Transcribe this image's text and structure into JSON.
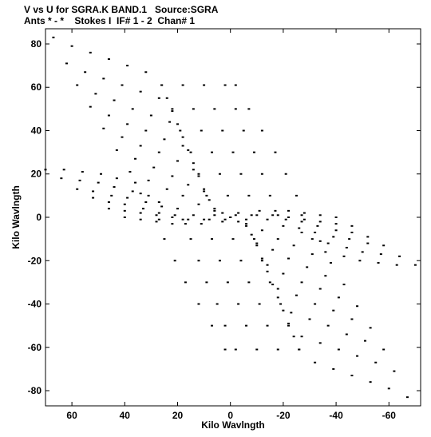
{
  "header": {
    "line1": "V vs U for SGRA.K BAND.1   Source:SGRA",
    "line2": "Ants * - *    Stokes I  IF# 1 - 2  Chan# 1"
  },
  "chart_data": {
    "type": "scatter",
    "title": "V vs U for SGRA.K BAND.1   Source:SGRA",
    "xlabel": "Kilo Wavlngth",
    "ylabel": "Kilo Wavlngth",
    "xlim": [
      70,
      -72
    ],
    "ylim": [
      -87,
      87
    ],
    "xticks": [
      60,
      40,
      20,
      0,
      -20,
      -40,
      -60
    ],
    "xtick_labels": [
      "60",
      "40",
      "20",
      "0",
      "-20",
      "-40",
      "-60"
    ],
    "yticks": [
      80,
      60,
      40,
      20,
      0,
      -20,
      -40,
      -60,
      -80
    ],
    "ytick_labels": [
      "80",
      "60",
      "40",
      "20",
      "0",
      "-20",
      "-40",
      "-60",
      "-80"
    ],
    "grid": false,
    "legend": "none",
    "marker_color": "#000000",
    "symmetry": "points mirrored through origin (u,v) and (-u,-v)",
    "series": [
      {
        "values": [
          [
            67,
            83
          ],
          [
            60,
            79
          ],
          [
            53,
            76
          ],
          [
            46,
            73
          ],
          [
            39,
            70
          ],
          [
            32,
            67
          ],
          [
            62,
            71
          ],
          [
            55,
            67
          ],
          [
            48,
            64
          ],
          [
            41,
            61
          ],
          [
            34,
            58
          ],
          [
            27,
            55
          ],
          [
            58,
            61
          ],
          [
            51,
            57
          ],
          [
            44,
            54
          ],
          [
            37,
            50
          ],
          [
            30,
            47
          ],
          [
            23,
            44
          ],
          [
            53,
            51
          ],
          [
            46,
            47
          ],
          [
            39,
            43
          ],
          [
            32,
            40
          ],
          [
            25,
            36
          ],
          [
            18,
            33
          ],
          [
            48,
            41
          ],
          [
            41,
            37
          ],
          [
            34,
            33
          ],
          [
            27,
            30
          ],
          [
            20,
            26
          ],
          [
            14,
            22
          ],
          [
            43,
            31
          ],
          [
            36,
            27
          ],
          [
            29,
            23
          ],
          [
            22,
            19
          ],
          [
            16,
            15
          ],
          [
            10,
            12
          ],
          [
            38,
            21
          ],
          [
            31,
            17
          ],
          [
            24,
            13
          ],
          [
            18,
            10
          ],
          [
            12,
            6
          ],
          [
            6,
            3
          ],
          [
            34,
            11
          ],
          [
            27,
            7
          ],
          [
            20,
            4
          ],
          [
            14,
            1
          ],
          [
            8,
            -1
          ],
          [
            3,
            -2
          ],
          [
            70,
            22
          ],
          [
            63,
            22
          ],
          [
            56,
            21
          ],
          [
            49,
            20
          ],
          [
            43,
            18
          ],
          [
            36,
            16
          ],
          [
            64,
            18
          ],
          [
            57,
            17
          ],
          [
            50,
            16
          ],
          [
            44,
            14
          ],
          [
            37,
            12
          ],
          [
            31,
            10
          ],
          [
            58,
            13
          ],
          [
            52,
            12
          ],
          [
            45,
            10
          ],
          [
            39,
            9
          ],
          [
            32,
            7
          ],
          [
            26,
            5
          ],
          [
            52,
            9
          ],
          [
            46,
            7
          ],
          [
            40,
            6
          ],
          [
            33,
            4
          ],
          [
            27,
            2
          ],
          [
            21,
            1
          ],
          [
            46,
            4
          ],
          [
            40,
            3
          ],
          [
            34,
            2
          ],
          [
            28,
            1
          ],
          [
            22,
            0
          ],
          [
            16,
            -1
          ],
          [
            40,
            0
          ],
          [
            34,
            -1
          ],
          [
            28,
            -2
          ],
          [
            22,
            -3
          ],
          [
            17,
            -3
          ],
          [
            11,
            -3
          ],
          [
            26,
            61
          ],
          [
            18,
            61
          ],
          [
            10,
            61
          ],
          [
            2,
            61
          ],
          [
            -2,
            61
          ],
          [
            22,
            50
          ],
          [
            14,
            50
          ],
          [
            6,
            50
          ],
          [
            -2,
            50
          ],
          [
            -7,
            50
          ],
          [
            19,
            40
          ],
          [
            11,
            40
          ],
          [
            3,
            40
          ],
          [
            -5,
            40
          ],
          [
            -12,
            40
          ],
          [
            15,
            30
          ],
          [
            7,
            30
          ],
          [
            -1,
            30
          ],
          [
            -9,
            30
          ],
          [
            -17,
            30
          ],
          [
            12,
            20
          ],
          [
            4,
            20
          ],
          [
            -4,
            20
          ],
          [
            -12,
            20
          ],
          [
            -21,
            20
          ],
          [
            9,
            10
          ],
          [
            1,
            10
          ],
          [
            -7,
            10
          ],
          [
            -15,
            10
          ],
          [
            -25,
            10
          ],
          [
            6,
            1
          ],
          [
            -2,
            1
          ],
          [
            -10,
            1
          ],
          [
            -18,
            1
          ],
          [
            -27,
            1
          ],
          [
            26,
            61
          ],
          [
            24,
            55
          ],
          [
            22,
            49
          ],
          [
            20,
            43
          ],
          [
            18,
            37
          ],
          [
            16,
            31
          ],
          [
            14,
            25
          ],
          [
            12,
            19
          ],
          [
            10,
            13
          ],
          [
            8,
            8
          ],
          [
            6,
            4
          ],
          [
            3,
            2
          ],
          [
            0,
            0
          ]
        ]
      }
    ]
  }
}
